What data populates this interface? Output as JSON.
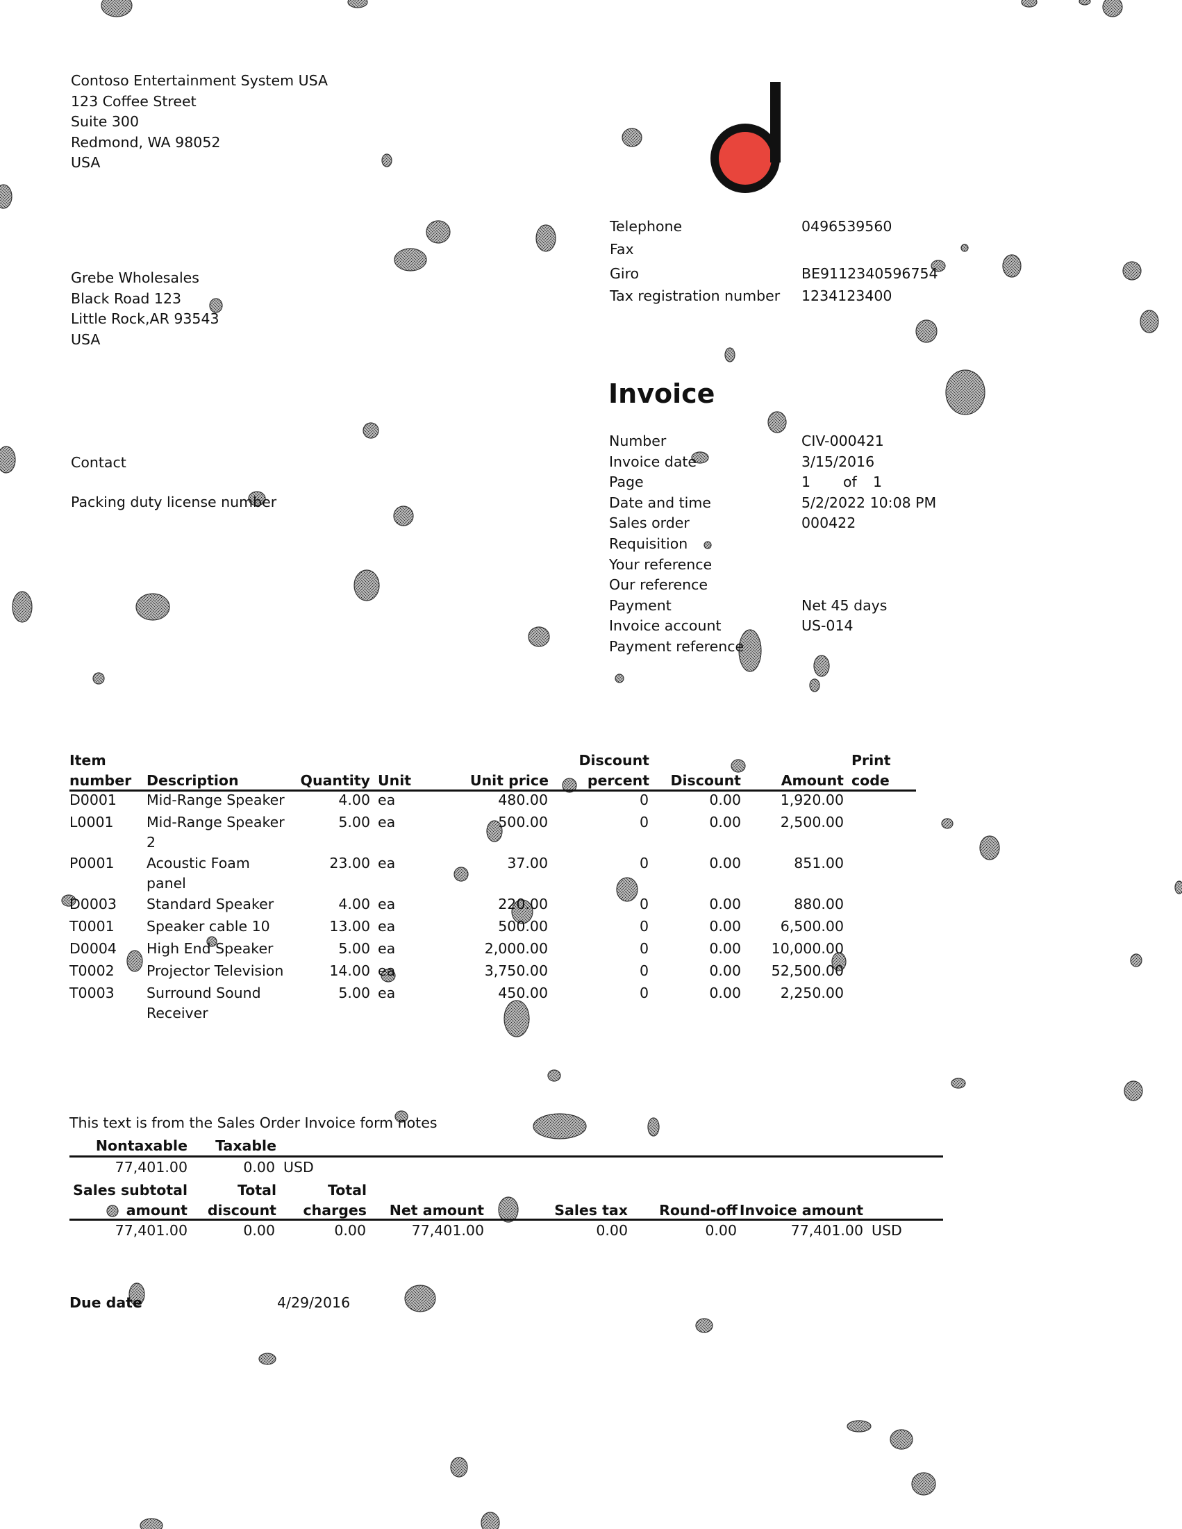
{
  "company": {
    "lines": [
      "Contoso Entertainment System USA",
      "123 Coffee Street",
      "Suite 300",
      "Redmond, WA 98052",
      "USA"
    ]
  },
  "customer": {
    "lines": [
      "Grebe Wholesales",
      "Black Road 123",
      "Little Rock,AR 93543",
      "USA"
    ]
  },
  "contact_label": "Contact",
  "packing_label": "Packing duty license number",
  "company_info": [
    {
      "label": "Telephone",
      "value": "0496539560"
    },
    {
      "label": "Fax",
      "value": ""
    },
    {
      "label": "Giro",
      "value": "BE9112340596754"
    },
    {
      "label": "Tax registration number",
      "value": "1234123400"
    }
  ],
  "invoice_title": "Invoice",
  "invoice_info": [
    {
      "label": "Number",
      "value": "CIV-000421"
    },
    {
      "label": "Invoice date",
      "value": "3/15/2016"
    },
    {
      "label": "Page",
      "value": "1",
      "value2_sep": "of",
      "value2": "1"
    },
    {
      "label": "Date and time",
      "value": "5/2/2022 10:08 PM"
    },
    {
      "label": "Sales order",
      "value": "000422"
    },
    {
      "label": "Requisition",
      "value": ""
    },
    {
      "label": "Your reference",
      "value": ""
    },
    {
      "label": "Our reference",
      "value": ""
    },
    {
      "label": "Payment",
      "value": "Net 45 days"
    },
    {
      "label": "Invoice account",
      "value": "US-014"
    },
    {
      "label": "Payment reference",
      "value": ""
    }
  ],
  "lines_table": {
    "headers": {
      "item_l1": "Item",
      "item_l2": "number",
      "description": "Description",
      "quantity": "Quantity",
      "unit": "Unit",
      "unit_price": "Unit price",
      "discpct_l1": "Discount",
      "discpct_l2": "percent",
      "discount": "Discount",
      "amount": "Amount",
      "print_l1": "Print",
      "print_l2": "code"
    },
    "rows": [
      {
        "item": "D0001",
        "desc1": "Mid-Range Speaker",
        "desc2": "",
        "qty": "4.00",
        "unit": "ea",
        "price": "480.00",
        "discpct": "0",
        "disc": "0.00",
        "amount": "1,920.00"
      },
      {
        "item": "L0001",
        "desc1": "Mid-Range Speaker",
        "desc2": "2",
        "qty": "5.00",
        "unit": "ea",
        "price": "500.00",
        "discpct": "0",
        "disc": "0.00",
        "amount": "2,500.00"
      },
      {
        "item": "P0001",
        "desc1": "Acoustic Foam",
        "desc2": "panel",
        "qty": "23.00",
        "unit": "ea",
        "price": "37.00",
        "discpct": "0",
        "disc": "0.00",
        "amount": "851.00"
      },
      {
        "item": "D0003",
        "desc1": "Standard Speaker",
        "desc2": "",
        "qty": "4.00",
        "unit": "ea",
        "price": "220.00",
        "discpct": "0",
        "disc": "0.00",
        "amount": "880.00"
      },
      {
        "item": "T0001",
        "desc1": "Speaker cable 10",
        "desc2": "",
        "qty": "13.00",
        "unit": "ea",
        "price": "500.00",
        "discpct": "0",
        "disc": "0.00",
        "amount": "6,500.00"
      },
      {
        "item": "D0004",
        "desc1": "High End Speaker",
        "desc2": "",
        "qty": "5.00",
        "unit": "ea",
        "price": "2,000.00",
        "discpct": "0",
        "disc": "0.00",
        "amount": "10,000.00"
      },
      {
        "item": "T0002",
        "desc1": "Projector Television",
        "desc2": "",
        "qty": "14.00",
        "unit": "ea",
        "price": "3,750.00",
        "discpct": "0",
        "disc": "0.00",
        "amount": "52,500.00"
      },
      {
        "item": "T0003",
        "desc1": "Surround Sound",
        "desc2": "Receiver",
        "qty": "5.00",
        "unit": "ea",
        "price": "450.00",
        "discpct": "0",
        "disc": "0.00",
        "amount": "2,250.00"
      }
    ]
  },
  "notes": "This text is from the Sales Order Invoice form notes",
  "tax_summary": {
    "nontaxable_label": "Nontaxable",
    "taxable_label": "Taxable",
    "nontaxable": "77,401.00",
    "taxable": "0.00",
    "currency": "USD"
  },
  "totals": {
    "subtotal_l1": "Sales subtotal",
    "subtotal_l2": "amount",
    "discount_l1": "Total",
    "discount_l2": "discount",
    "charges_l1": "Total",
    "charges_l2": "charges",
    "net_label": "Net amount",
    "tax_label": "Sales tax",
    "roundoff_label": "Round-off",
    "invoice_label": "Invoice amount",
    "subtotal": "77,401.00",
    "discount": "0.00",
    "charges": "0.00",
    "net": "77,401.00",
    "tax": "0.00",
    "roundoff": "0.00",
    "invoice": "77,401.00",
    "currency": "USD"
  },
  "due_date": {
    "label": "Due date",
    "value": "4/29/2016"
  },
  "colors": {
    "logo_red": "#e8453c",
    "logo_black": "#111111",
    "text": "#111111"
  }
}
